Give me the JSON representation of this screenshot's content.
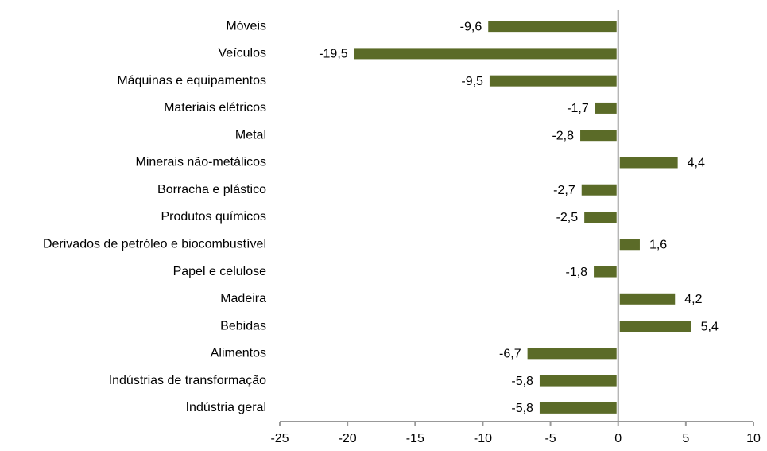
{
  "chart_data": {
    "type": "bar",
    "orientation": "horizontal",
    "categories": [
      "Móveis",
      "Veículos",
      "Máquinas e equipamentos",
      "Materiais elétricos",
      "Metal",
      "Minerais não-metálicos",
      "Borracha e plástico",
      "Produtos químicos",
      "Derivados de petróleo e biocombustível",
      "Papel e celulose",
      "Madeira",
      "Bebidas",
      "Alimentos",
      "Indústrias de transformação",
      "Indústria geral"
    ],
    "values": [
      -9.6,
      -19.5,
      -9.5,
      -1.7,
      -2.8,
      4.4,
      -2.7,
      -2.5,
      1.6,
      -1.8,
      4.2,
      5.4,
      -6.7,
      -5.8,
      -5.8
    ],
    "value_labels": [
      "-9,6",
      "-19,5",
      "-9,5",
      "-1,7",
      "-2,8",
      "4,4",
      "-2,7",
      "-2,5",
      "1,6",
      "-1,8",
      "4,2",
      "5,4",
      "-6,7",
      "-5,8",
      "-5,8"
    ],
    "color": "#5b6b28",
    "xlim": [
      -25,
      10
    ],
    "xticks": [
      -25,
      -20,
      -15,
      -10,
      -5,
      0,
      5,
      10
    ]
  }
}
